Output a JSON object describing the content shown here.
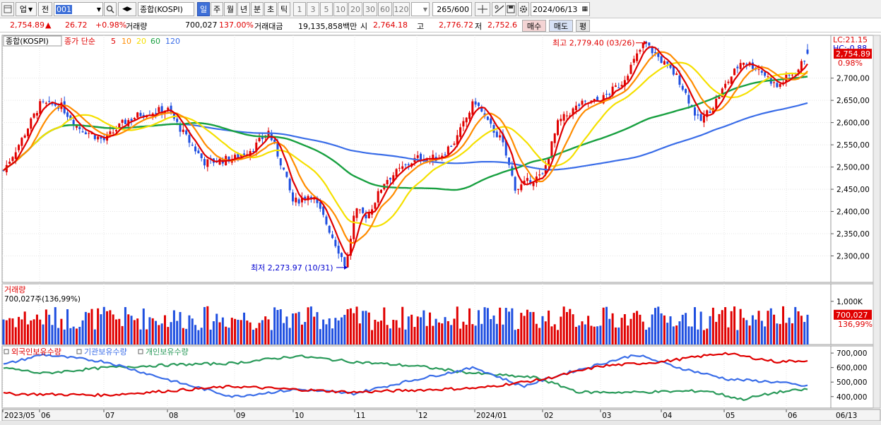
{
  "toolbar": {
    "market": "업",
    "prev": "전",
    "code": "001",
    "name": "종합(KOSPI)",
    "periods": [
      "일",
      "주",
      "월",
      "년",
      "분",
      "초",
      "틱"
    ],
    "active_period": "일",
    "minutes": [
      "1",
      "3",
      "5",
      "10",
      "20",
      "30",
      "60",
      "120"
    ],
    "count": "265/600",
    "date": "2024/06/13"
  },
  "infobar": {
    "price": "2,754.89",
    "change_arrow": "▲",
    "change": "26.72",
    "change_pct": "+0.98%",
    "volume_label": "거래량",
    "volume": "700,027",
    "volume_pct": "137.00%",
    "amount_label": "거래대금",
    "amount": "19,135,858백만",
    "open_label": "시",
    "open": "2,764.18",
    "high_label": "고",
    "high": "2,776.72",
    "low_label": "저",
    "low": "2,752.6",
    "sell_label": "매수",
    "buy_label": "매도",
    "eval_label": "평"
  },
  "colors": {
    "up": "#e00000",
    "down": "#1f4fe0",
    "ma5": "#e00000",
    "ma10": "#ff8c00",
    "ma20": "#f5e000",
    "ma60": "#18a040",
    "ma120": "#3a6de8",
    "foreign": "#e00000",
    "institution": "#3a6de8",
    "individual": "#2a9a5a"
  },
  "price_pane": {
    "legend_name": "종합(KOSPI)",
    "legend_ma": "종가 단순",
    "ma_periods": [
      "5",
      "10",
      "20",
      "60",
      "120"
    ],
    "lc": "LC:21.15",
    "hc": "HC:-0.88",
    "last_price_tag": "2,754.89",
    "last_pct_tag": "0.98%",
    "high_annotation": "최고 2,779.40 (03/26)",
    "low_annotation": "최저 2,273.97 (10/31)",
    "y_ticks": [
      "2,300,00",
      "2,350,00",
      "2,400,00",
      "2,450,00",
      "2,500,00",
      "2,550,00",
      "2,600,00",
      "2,650,00",
      "2,700,00"
    ]
  },
  "volume_pane": {
    "title": "거래량",
    "value_text": "700,027주(136,99%)",
    "y_tick": "1,000K",
    "tag_value": "700,027",
    "tag_pct": "136,99%"
  },
  "investor_pane": {
    "legend": [
      "외국인보유수량",
      "기관보유수량",
      "개인보유수량"
    ],
    "y_ticks": [
      "400,000",
      "500,000",
      "600,000",
      "700,000"
    ]
  },
  "x_axis": {
    "labels": [
      "2023/05",
      "06",
      "07",
      "08",
      "09",
      "10",
      "11",
      "12",
      "2024/01",
      "02",
      "03",
      "04",
      "05",
      "06"
    ],
    "last_date": "06/13"
  },
  "chart_data": {
    "type": "candlestick",
    "ylim": [
      2250,
      2790
    ],
    "key_points": [
      {
        "date": "2023/05",
        "value": 2490
      },
      {
        "date": "06",
        "value": 2640
      },
      {
        "date": "07",
        "value": 2560
      },
      {
        "date": "08",
        "value": 2630
      },
      {
        "date": "09",
        "value": 2520
      },
      {
        "date": "10",
        "value": 2420
      },
      {
        "date": "10/31",
        "value": 2273.97
      },
      {
        "date": "11",
        "value": 2400
      },
      {
        "date": "12",
        "value": 2520
      },
      {
        "date": "2024/01",
        "value": 2650
      },
      {
        "date": "02",
        "value": 2470
      },
      {
        "date": "03",
        "value": 2650
      },
      {
        "date": "03/26",
        "value": 2779.4
      },
      {
        "date": "04",
        "value": 2740
      },
      {
        "date": "05",
        "value": 2680
      },
      {
        "date": "06",
        "value": 2700
      },
      {
        "date": "06/13",
        "value": 2754.89
      }
    ]
  }
}
